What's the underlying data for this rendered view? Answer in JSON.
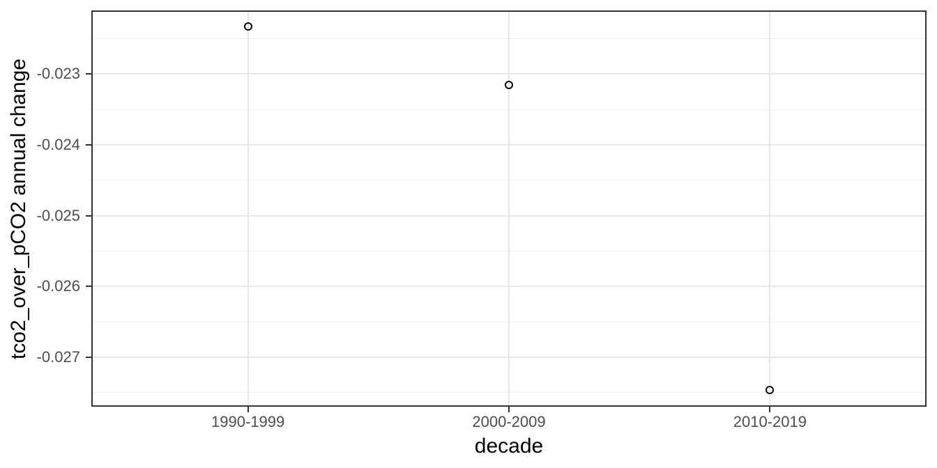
{
  "chart_data": {
    "type": "scatter",
    "title": "",
    "xlabel": "decade",
    "ylabel": "tco2_over_pCO2 annual change",
    "categories": [
      "1990-1999",
      "2000-2009",
      "2010-2019"
    ],
    "values": [
      -0.02233,
      -0.02315,
      -0.02746
    ],
    "yticks": [
      -0.023,
      -0.024,
      -0.025,
      -0.026,
      -0.027
    ],
    "ytick_labels": [
      "-0.023",
      "-0.024",
      "-0.025",
      "-0.026",
      "-0.027"
    ],
    "yminor": [
      -0.0225,
      -0.0235,
      -0.0245,
      -0.0255,
      -0.0265,
      -0.0275
    ],
    "ylim": [
      -0.0277,
      -0.0221
    ],
    "grid": "major-and-minor-horizontal, major-vertical",
    "legend": "none",
    "marker": "open-circle",
    "colors": {
      "background": "#ffffff",
      "panel_border": "#333333",
      "grid_major": "#e7e7e7",
      "grid_minor": "#f0f0f0",
      "tick_mark": "#333333",
      "tick_label": "#4d4d4d",
      "axis_title": "#000000",
      "point_stroke": "#000000"
    }
  }
}
